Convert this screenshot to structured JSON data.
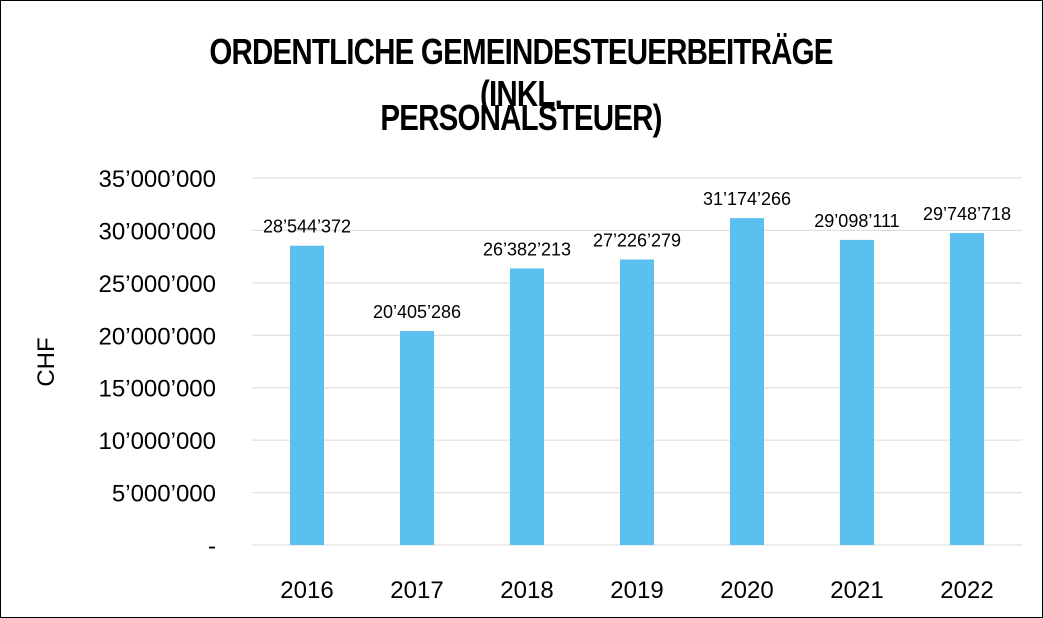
{
  "chart_data": {
    "type": "bar",
    "title_line1": "ORDENTLICHE GEMEINDESTEUERBEITRÄGE (INKL.",
    "title_line2": "PERSONALSTEUER)",
    "xlabel": "",
    "ylabel": "CHF",
    "categories": [
      "2016",
      "2017",
      "2018",
      "2019",
      "2020",
      "2021",
      "2022"
    ],
    "values": [
      28544372,
      20405286,
      26382213,
      27226279,
      31174266,
      29098111,
      29748718
    ],
    "value_labels": [
      "28’544’372",
      "20’405’286",
      "26’382’213",
      "27’226’279",
      "31’174’266",
      "29’098’111",
      "29’748’718"
    ],
    "yticks": [
      0,
      5000000,
      10000000,
      15000000,
      20000000,
      25000000,
      30000000,
      35000000
    ],
    "ytick_labels": [
      "-",
      "5’000’000",
      "10’000’000",
      "15’000’000",
      "20’000’000",
      "25’000’000",
      "30’000’000",
      "35’000’000"
    ],
    "ylim": [
      0,
      35000000
    ],
    "grid": true,
    "bar_color": "#5bc0f0",
    "grid_color": "#d9d9d9"
  }
}
